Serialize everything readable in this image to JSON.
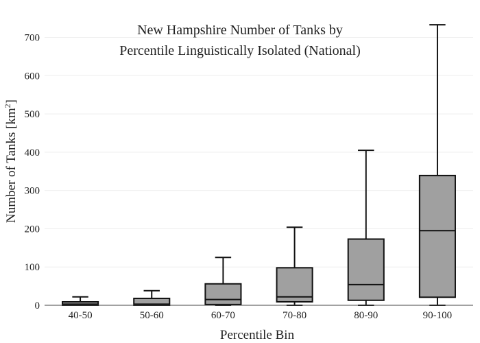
{
  "chart_data": {
    "type": "box",
    "title_lines": [
      "New Hampshire Number of Tanks by",
      "Percentile Linguistically Isolated (National)"
    ],
    "xlabel": "Percentile Bin",
    "ylabel": "Number of Tanks  [km",
    "ylabel_sup": "2",
    "ylabel_close": "]",
    "ylim": [
      0,
      735
    ],
    "yticks": [
      0,
      100,
      200,
      300,
      400,
      500,
      600,
      700
    ],
    "grid": true,
    "categories": [
      "40-50",
      "50-60",
      "60-70",
      "70-80",
      "80-90",
      "90-100"
    ],
    "boxes": [
      {
        "category": "40-50",
        "min": 0,
        "q1": 0,
        "median": 3,
        "q3": 9,
        "max": 22
      },
      {
        "category": "50-60",
        "min": 0,
        "q1": 0,
        "median": 3,
        "q3": 18,
        "max": 38
      },
      {
        "category": "60-70",
        "min": 0,
        "q1": 2,
        "median": 15,
        "q3": 56,
        "max": 125
      },
      {
        "category": "70-80",
        "min": 0,
        "q1": 9,
        "median": 22,
        "q3": 98,
        "max": 204
      },
      {
        "category": "80-90",
        "min": 0,
        "q1": 13,
        "median": 54,
        "q3": 173,
        "max": 405
      },
      {
        "category": "90-100",
        "min": 0,
        "q1": 21,
        "median": 195,
        "q3": 339,
        "max": 733
      }
    ],
    "colors": {
      "box_fill": "#a0a0a0",
      "box_stroke": "#111111",
      "grid": "#eeeeee",
      "axis": "#444444"
    }
  }
}
